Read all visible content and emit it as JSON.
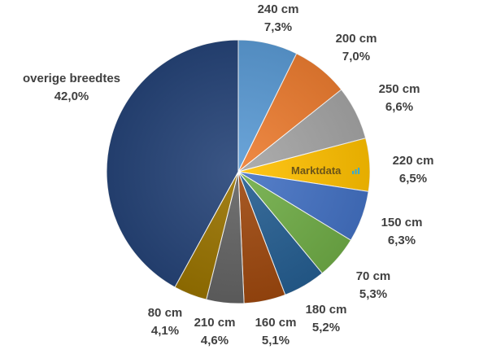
{
  "chart_data": {
    "type": "pie",
    "start_angle_deg": 0,
    "direction": "clockwise",
    "slices": [
      {
        "name": "240 cm",
        "value": 7.3,
        "label_value": "7,3%",
        "color": "#5b9bd5"
      },
      {
        "name": "200 cm",
        "value": 7.0,
        "label_value": "7,0%",
        "color": "#ed7d31"
      },
      {
        "name": "250 cm",
        "value": 6.6,
        "label_value": "6,6%",
        "color": "#a5a5a5"
      },
      {
        "name": "220 cm",
        "value": 6.5,
        "label_value": "6,5%",
        "color": "#ffc000"
      },
      {
        "name": "150 cm",
        "value": 6.3,
        "label_value": "6,3%",
        "color": "#4472c4"
      },
      {
        "name": "70 cm",
        "value": 5.3,
        "label_value": "5,3%",
        "color": "#70ad47"
      },
      {
        "name": "180 cm",
        "value": 5.2,
        "label_value": "5,2%",
        "color": "#255e91"
      },
      {
        "name": "160 cm",
        "value": 5.1,
        "label_value": "5,1%",
        "color": "#9e480e"
      },
      {
        "name": "210 cm",
        "value": 4.6,
        "label_value": "4,6%",
        "color": "#636363"
      },
      {
        "name": "80 cm",
        "value": 4.1,
        "label_value": "4,1%",
        "color": "#997300"
      },
      {
        "name": "overige breedtes",
        "value": 42.0,
        "label_value": "42,0%",
        "color": "#264478"
      }
    ]
  },
  "watermark": {
    "text": "Marktdata",
    "color": "#6b5418",
    "bar_color": "#3fa9c9"
  }
}
